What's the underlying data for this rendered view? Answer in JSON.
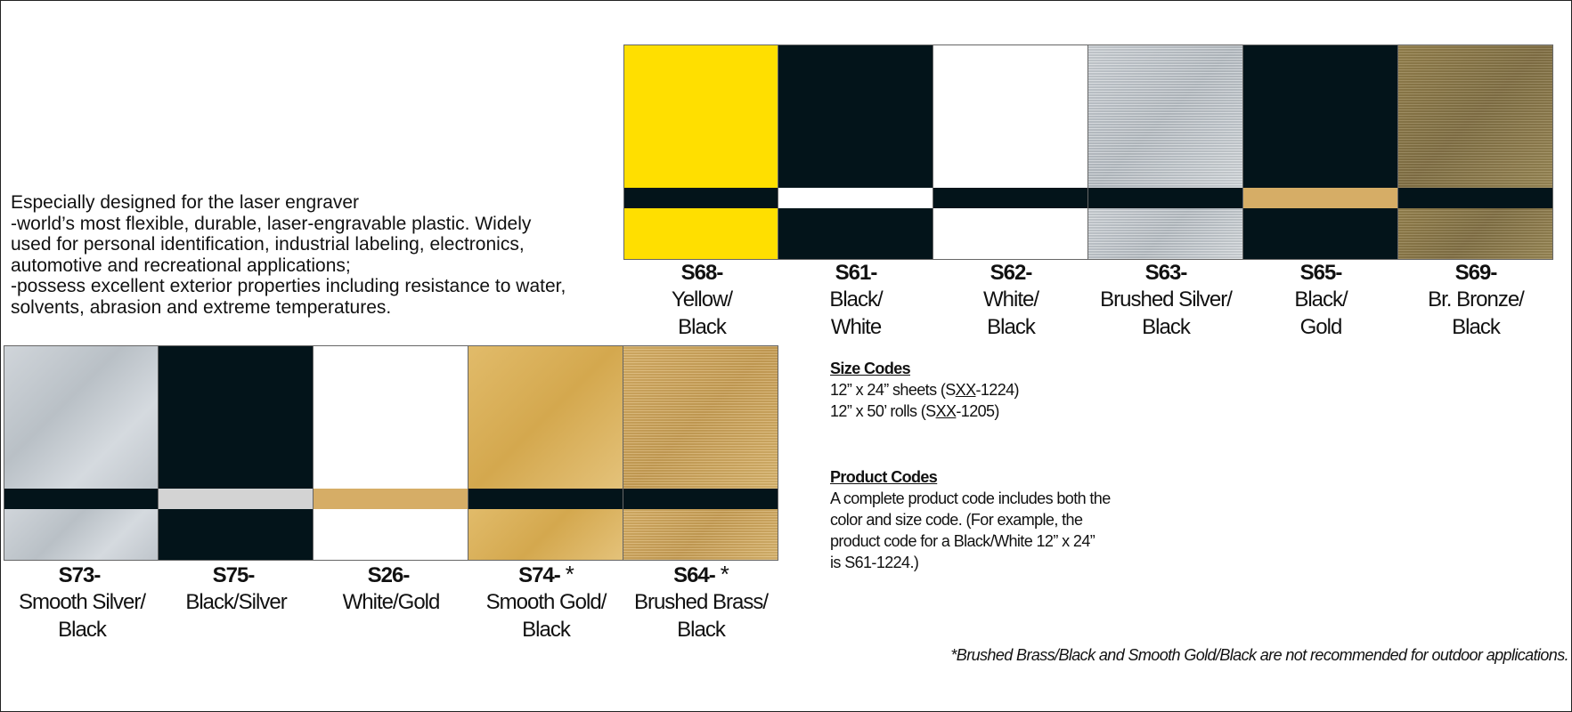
{
  "intro": {
    "lines": [
      "Especially designed for the laser engraver",
      "-world’s most flexible, durable, laser-engravable plastic. Widely",
      "used for personal identification, industrial labeling, electronics,",
      "automotive and recreational applications;",
      "-possess excellent exterior properties including resistance to water,",
      "solvents, abrasion and extreme temperatures."
    ]
  },
  "top_swatches": [
    {
      "code": "S68-",
      "name1": "Yellow/",
      "name2": "Black",
      "face": "yellow",
      "core": "black"
    },
    {
      "code": "S61-",
      "name1": "Black/",
      "name2": "White",
      "face": "black",
      "core": "white"
    },
    {
      "code": "S62-",
      "name1": "White/",
      "name2": "Black",
      "face": "white",
      "core": "black"
    },
    {
      "code": "S63-",
      "name1": "Brushed Silver/",
      "name2": "Black",
      "face": "silver-brushed",
      "core": "black"
    },
    {
      "code": "S65-",
      "name1": "Black/",
      "name2": "Gold",
      "face": "black",
      "core": "gold-stripe"
    },
    {
      "code": "S69-",
      "name1": "Br. Bronze/",
      "name2": "Black",
      "face": "bronze-brushed",
      "core": "black"
    }
  ],
  "bottom_swatches": [
    {
      "code": "S73-",
      "name1": "Smooth Silver/",
      "name2": "Black",
      "face": "silver-smooth",
      "core": "black",
      "star": ""
    },
    {
      "code": "S75-",
      "name1": "Black/Silver",
      "name2": "",
      "face": "black",
      "core": "silver-stripe",
      "star": ""
    },
    {
      "code": "S26-",
      "name1": "White/Gold",
      "name2": "",
      "face": "white",
      "core": "gold-stripe",
      "star": ""
    },
    {
      "code": "S74-",
      "name1": "Smooth Gold/",
      "name2": "Black",
      "face": "gold-smooth",
      "core": "black",
      "star": "*"
    },
    {
      "code": "S64-",
      "name1": "Brushed Brass/",
      "name2": "Black",
      "face": "brass-brushed",
      "core": "black",
      "star": "*"
    }
  ],
  "size_codes": {
    "heading": "Size Codes",
    "sheet_prefix": "12” x 24” sheets (S",
    "sheet_xx": "XX",
    "sheet_suffix": "-1224)",
    "roll_prefix": "12” x 50’ rolls (S",
    "roll_xx": "XX",
    "roll_suffix": "-1205)"
  },
  "product_codes": {
    "heading": "Product Codes",
    "lines": [
      "A complete product code includes both the",
      "color and size code. (For example, the",
      "product code for a Black/White 12” x 24”",
      "is S61-1224.)"
    ]
  },
  "footnote": "*Brushed Brass/Black and Smooth Gold/Black are not recommended for outdoor applications."
}
